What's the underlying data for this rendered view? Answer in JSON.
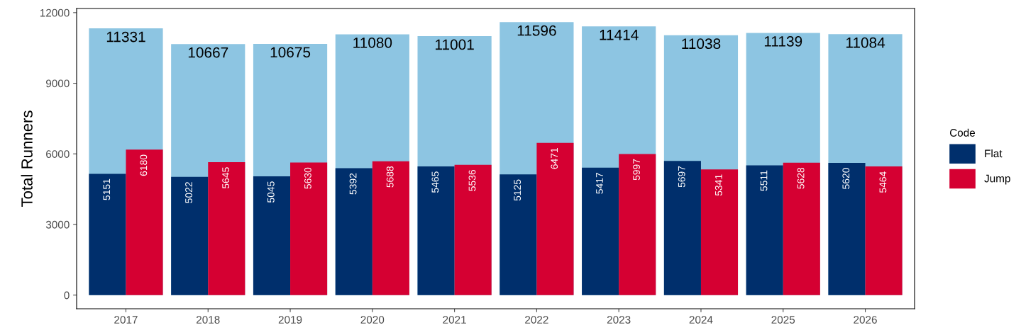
{
  "chart_data": {
    "type": "bar",
    "ylabel": "Total Runners",
    "legend_title": "Code",
    "categories": [
      "2017",
      "2018",
      "2019",
      "2020",
      "2021",
      "2022",
      "2023",
      "2024",
      "2025",
      "2026"
    ],
    "series": [
      {
        "color": "#8dc5e2",
        "values": [
          11331,
          10667,
          10675,
          11080,
          11001,
          11596,
          11414,
          11038,
          11139,
          11084
        ]
      },
      {
        "name": "Flat",
        "color": "#002f6c",
        "values": [
          5151,
          5022,
          5045,
          5392,
          5465,
          5125,
          5417,
          5697,
          5511,
          5620
        ]
      },
      {
        "name": "Jump",
        "color": "#d50032",
        "values": [
          6180,
          5645,
          5630,
          5688,
          5536,
          6471,
          5997,
          5341,
          5628,
          5464
        ]
      }
    ],
    "ylim": [
      -580,
      12176
    ],
    "yticks": [
      0,
      3000,
      6000,
      9000,
      12000
    ],
    "data_labels": true,
    "legend": "right",
    "grid": false
  }
}
